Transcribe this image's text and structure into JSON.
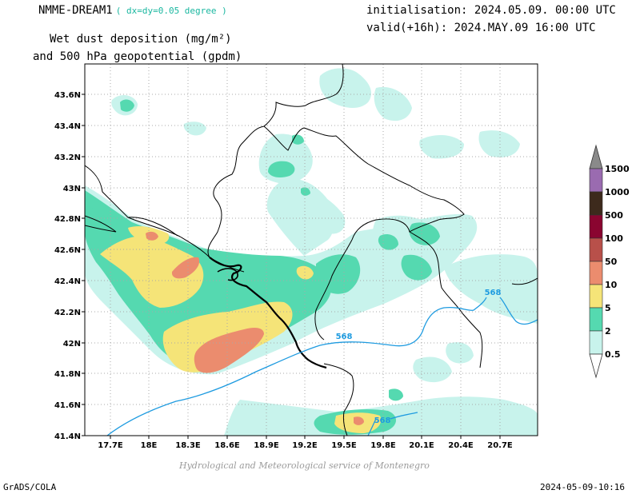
{
  "header": {
    "model": "NMME-DREAM1",
    "resolution": "( dx=dy=0.05 degree )",
    "init": "initialisation: 2024.05.09. 00:00 UTC",
    "valid": "valid(+16h): 2024.MAY.09 16:00 UTC",
    "variable_line1": "Wet dust deposition (mg/m²)",
    "variable_line2": "and 500 hPa geopotential (gpdm)"
  },
  "map": {
    "lat_labels": [
      "43.6N",
      "43.4N",
      "43.2N",
      "43N",
      "42.8N",
      "42.6N",
      "42.4N",
      "42.2N",
      "42N",
      "41.8N",
      "41.6N",
      "41.4N"
    ],
    "lon_labels": [
      "17.7E",
      "18E",
      "18.3E",
      "18.6E",
      "18.9E",
      "19.2E",
      "19.5E",
      "19.8E",
      "20.1E",
      "20.4E",
      "20.7E"
    ],
    "contour_labels": [
      "568",
      "568",
      "568"
    ],
    "contour_color": "#1e9be0"
  },
  "legend": {
    "levels": [
      "1500",
      "1000",
      "500",
      "100",
      "50",
      "10",
      "5",
      "2",
      "0.5"
    ],
    "colors": [
      "#9a6bb0",
      "#3d2a1c",
      "#8a0530",
      "#b8504a",
      "#eb8c6e",
      "#f5e478",
      "#55d9b0",
      "#c8f3ec"
    ]
  },
  "footer": {
    "credit": "Hydrological and Meteorological service of Montenegro",
    "software": "GrADS/COLA",
    "timestamp": "2024-05-09-10:16"
  }
}
